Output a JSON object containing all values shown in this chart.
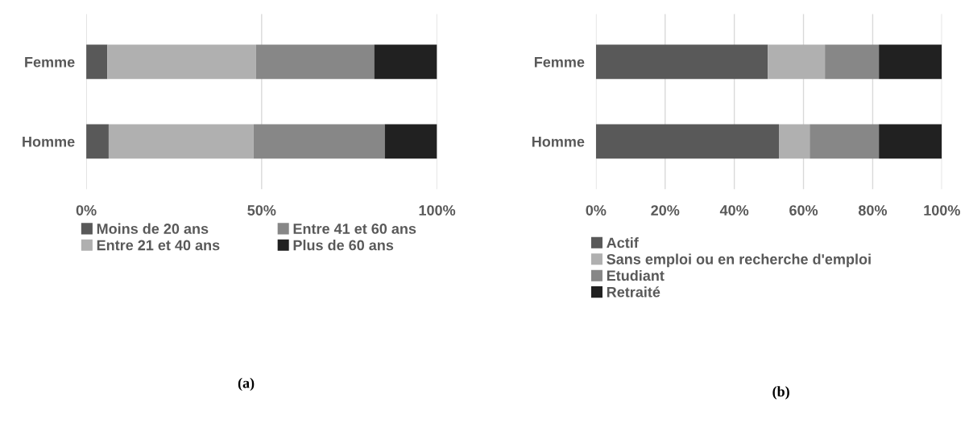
{
  "chart_data": [
    {
      "type": "bar",
      "orientation": "horizontal",
      "stacked": true,
      "categories": [
        "Femme",
        "Homme"
      ],
      "series": [
        {
          "name": "Moins de 20 ans",
          "color": "#595959",
          "values": [
            6,
            6.4
          ]
        },
        {
          "name": "Entre 21 et 40 ans",
          "color": "#b0b0b0",
          "values": [
            42.4,
            41.3
          ]
        },
        {
          "name": "Entre 41 et 60 ans",
          "color": "#878787",
          "values": [
            33.7,
            37.4
          ]
        },
        {
          "name": "Plus de 60 ans",
          "color": "#212121",
          "values": [
            17.9,
            14.9
          ]
        }
      ],
      "xlim": [
        0,
        100
      ],
      "xticks": [
        {
          "value": 0,
          "label": "0%"
        },
        {
          "value": 50,
          "label": "50%"
        },
        {
          "value": 100,
          "label": "100%"
        }
      ],
      "grid": "x",
      "legend": "bottom",
      "annotations": [
        "(a)"
      ]
    },
    {
      "type": "bar",
      "orientation": "horizontal",
      "stacked": true,
      "categories": [
        "Femme",
        "Homme"
      ],
      "series": [
        {
          "name": "Actif",
          "color": "#595959",
          "values": [
            49.7,
            52.9
          ]
        },
        {
          "name": "Sans emploi ou en recherche d'emploi",
          "color": "#b0b0b0",
          "values": [
            16.5,
            8.9
          ]
        },
        {
          "name": "Etudiant",
          "color": "#878787",
          "values": [
            15.6,
            20
          ]
        },
        {
          "name": "Retraité",
          "color": "#212121",
          "values": [
            18.2,
            18.2
          ]
        }
      ],
      "xlim": [
        0,
        100
      ],
      "xticks": [
        {
          "value": 0,
          "label": "0%"
        },
        {
          "value": 20,
          "label": "20%"
        },
        {
          "value": 40,
          "label": "40%"
        },
        {
          "value": 60,
          "label": "60%"
        },
        {
          "value": 80,
          "label": "80%"
        },
        {
          "value": 100,
          "label": "100%"
        }
      ],
      "grid": "x",
      "legend": "bottom",
      "annotations": [
        "(b)"
      ]
    }
  ]
}
